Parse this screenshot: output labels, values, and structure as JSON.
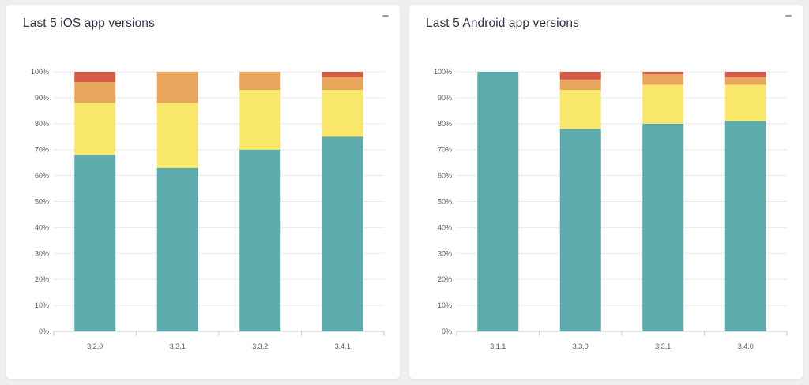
{
  "colors": {
    "teal": "#5dabad",
    "yellow": "#f8e76a",
    "orange": "#e8a55c",
    "red": "#d55a47"
  },
  "cards": [
    {
      "title": "Last 5 iOS app versions",
      "collapse_icon": "minus-icon"
    },
    {
      "title": "Last 5 Android app versions",
      "collapse_icon": "minus-icon"
    }
  ],
  "chart_data": [
    {
      "type": "bar",
      "stacked": true,
      "title": "Last 5 iOS app versions",
      "categories": [
        "3.2.0",
        "3.3.1",
        "3.3.2",
        "3.4.1"
      ],
      "ylim": [
        0,
        100
      ],
      "y_ticks": [
        "0%",
        "10%",
        "20%",
        "30%",
        "40%",
        "50%",
        "60%",
        "70%",
        "80%",
        "90%",
        "100%"
      ],
      "grid": true,
      "series": [
        {
          "color": "#5dabad",
          "values": [
            68,
            63,
            70,
            75
          ]
        },
        {
          "color": "#f8e76a",
          "values": [
            20,
            25,
            23,
            18
          ]
        },
        {
          "color": "#e8a55c",
          "values": [
            8,
            12,
            7,
            5
          ]
        },
        {
          "color": "#d55a47",
          "values": [
            4,
            0,
            0,
            2
          ]
        }
      ]
    },
    {
      "type": "bar",
      "stacked": true,
      "title": "Last 5 Android app versions",
      "categories": [
        "3.1.1",
        "3.3.0",
        "3.3.1",
        "3.4.0"
      ],
      "ylim": [
        0,
        100
      ],
      "y_ticks": [
        "0%",
        "10%",
        "20%",
        "30%",
        "40%",
        "50%",
        "60%",
        "70%",
        "80%",
        "90%",
        "100%"
      ],
      "grid": true,
      "series": [
        {
          "color": "#5dabad",
          "values": [
            100,
            78,
            80,
            81
          ]
        },
        {
          "color": "#f8e76a",
          "values": [
            0,
            15,
            15,
            14
          ]
        },
        {
          "color": "#e8a55c",
          "values": [
            0,
            4,
            4,
            3
          ]
        },
        {
          "color": "#d55a47",
          "values": [
            0,
            3,
            1,
            2
          ]
        }
      ]
    }
  ]
}
